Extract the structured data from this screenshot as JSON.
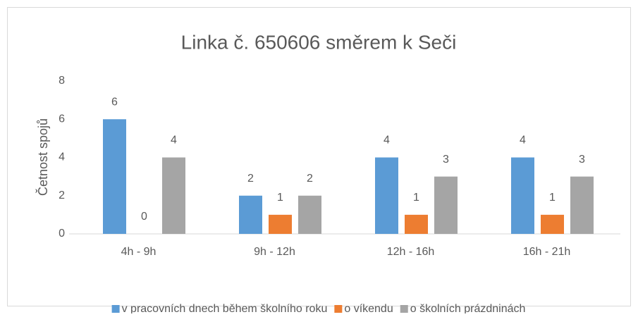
{
  "chart_data": {
    "type": "bar",
    "title": "Linka č. 650606 směrem k Seči",
    "y_label": "Četnost spojů",
    "categories": [
      "4h - 9h",
      "9h - 12h",
      "12h - 16h",
      "16h - 21h"
    ],
    "series": [
      {
        "name": "v pracovních dnech během školního roku",
        "color": "#5b9bd5",
        "values": [
          6,
          2,
          4,
          4
        ]
      },
      {
        "name": "o víkendu",
        "color": "#ed7d31",
        "values": [
          0,
          1,
          1,
          1
        ]
      },
      {
        "name": "o školních prázdninách",
        "color": "#a5a5a5",
        "values": [
          4,
          2,
          3,
          3
        ]
      }
    ],
    "ylim": [
      0,
      8
    ],
    "yticks": [
      0,
      2,
      4,
      6,
      8
    ],
    "grid": false,
    "legend": "bottom"
  }
}
